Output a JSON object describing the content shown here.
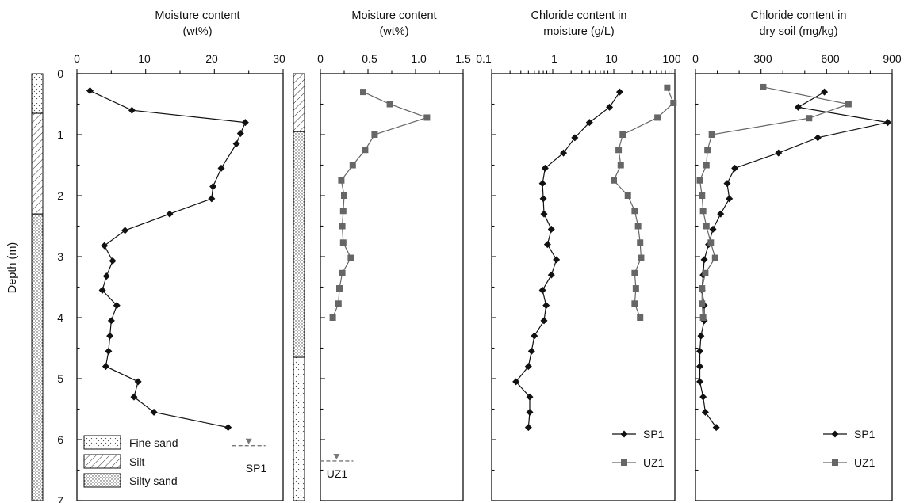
{
  "colors": {
    "sp1": "#111111",
    "uz1": "#666666",
    "axis": "#111111"
  },
  "y_axis": {
    "label": "Depth (m)",
    "range": [
      0,
      7
    ],
    "ticks": [
      "0",
      "1",
      "2",
      "3",
      "4",
      "5",
      "6",
      "7"
    ]
  },
  "lithology_legend": [
    {
      "pattern": "dots-fine",
      "label": "Fine sand"
    },
    {
      "pattern": "hatch",
      "label": "Silt"
    },
    {
      "pattern": "dots-dense",
      "label": "Silty sand"
    }
  ],
  "lithology_columns": [
    {
      "site": "SP1",
      "layers": [
        {
          "pattern": "dots-fine",
          "top": 0,
          "bottom": 0.65
        },
        {
          "pattern": "hatch",
          "top": 0.65,
          "bottom": 2.3
        },
        {
          "pattern": "dots-dense",
          "top": 2.3,
          "bottom": 7
        }
      ]
    },
    {
      "site": "UZ1",
      "layers": [
        {
          "pattern": "hatch",
          "top": 0,
          "bottom": 0.95
        },
        {
          "pattern": "dots-dense",
          "top": 0.95,
          "bottom": 4.65
        },
        {
          "pattern": "dots-fine",
          "top": 4.65,
          "bottom": 7
        }
      ]
    }
  ],
  "water_tables": [
    {
      "label": "SP1",
      "panel": 0,
      "x": 25,
      "depth": 6.1
    },
    {
      "label": "UZ1",
      "panel": 1,
      "x": 0.17,
      "depth": 6.35
    }
  ],
  "chart_data": [
    {
      "type": "line",
      "title_lines": [
        "Moisture content",
        "(wt%)"
      ],
      "xlim": [
        0,
        30
      ],
      "x_ticks": [
        "0",
        "10",
        "20",
        "30"
      ],
      "x_minor": [
        5,
        15,
        25
      ],
      "scale": "linear",
      "series": [
        {
          "name": "SP1",
          "marker": "diamond",
          "points": [
            [
              1.9,
              0.28
            ],
            [
              8.0,
              0.6
            ],
            [
              24.5,
              0.8
            ],
            [
              23.8,
              0.98
            ],
            [
              23.2,
              1.15
            ],
            [
              21.0,
              1.55
            ],
            [
              19.8,
              1.85
            ],
            [
              19.6,
              2.05
            ],
            [
              13.5,
              2.3
            ],
            [
              7.0,
              2.57
            ],
            [
              4.0,
              2.82
            ],
            [
              5.2,
              3.07
            ],
            [
              4.3,
              3.32
            ],
            [
              3.7,
              3.55
            ],
            [
              5.8,
              3.8
            ],
            [
              5.0,
              4.05
            ],
            [
              4.8,
              4.3
            ],
            [
              4.6,
              4.55
            ],
            [
              4.2,
              4.8
            ],
            [
              8.9,
              5.05
            ],
            [
              8.3,
              5.3
            ],
            [
              11.2,
              5.55
            ],
            [
              22.0,
              5.8
            ]
          ]
        }
      ]
    },
    {
      "type": "line",
      "title_lines": [
        "Moisture content",
        "(wt%)"
      ],
      "xlim": [
        0,
        1.5
      ],
      "x_ticks": [
        "0",
        "0.5",
        "1.0",
        "1.5"
      ],
      "x_minor": [
        0.25,
        0.75,
        1.25
      ],
      "scale": "linear",
      "series": [
        {
          "name": "UZ1",
          "marker": "square",
          "points": [
            [
              0.45,
              0.3
            ],
            [
              0.73,
              0.5
            ],
            [
              1.12,
              0.72
            ],
            [
              0.57,
              1.0
            ],
            [
              0.47,
              1.25
            ],
            [
              0.34,
              1.5
            ],
            [
              0.22,
              1.75
            ],
            [
              0.25,
              2.0
            ],
            [
              0.24,
              2.25
            ],
            [
              0.23,
              2.5
            ],
            [
              0.24,
              2.77
            ],
            [
              0.32,
              3.02
            ],
            [
              0.23,
              3.27
            ],
            [
              0.2,
              3.52
            ],
            [
              0.19,
              3.77
            ],
            [
              0.13,
              4.0
            ]
          ]
        }
      ]
    },
    {
      "type": "line",
      "title_lines": [
        "Chloride content in",
        "moisture (g/L)"
      ],
      "xlim": [
        0.1,
        100
      ],
      "x_ticks": [
        "0.1",
        "1",
        "10",
        "100"
      ],
      "scale": "log",
      "legend": {
        "position": "lower-right",
        "entries": [
          "SP1",
          "UZ1"
        ]
      },
      "series": [
        {
          "name": "SP1",
          "marker": "diamond",
          "points": [
            [
              12.5,
              0.3
            ],
            [
              8.5,
              0.55
            ],
            [
              4.0,
              0.8
            ],
            [
              2.3,
              1.05
            ],
            [
              1.5,
              1.3
            ],
            [
              0.75,
              1.55
            ],
            [
              0.68,
              1.8
            ],
            [
              0.7,
              2.05
            ],
            [
              0.72,
              2.3
            ],
            [
              0.95,
              2.55
            ],
            [
              0.82,
              2.8
            ],
            [
              1.15,
              3.05
            ],
            [
              0.95,
              3.3
            ],
            [
              0.68,
              3.55
            ],
            [
              0.78,
              3.8
            ],
            [
              0.72,
              4.05
            ],
            [
              0.5,
              4.3
            ],
            [
              0.45,
              4.55
            ],
            [
              0.4,
              4.8
            ],
            [
              0.25,
              5.05
            ],
            [
              0.42,
              5.3
            ],
            [
              0.42,
              5.55
            ],
            [
              0.4,
              5.8
            ]
          ]
        },
        {
          "name": "UZ1",
          "marker": "square",
          "points": [
            [
              75,
              0.23
            ],
            [
              95,
              0.48
            ],
            [
              52,
              0.72
            ],
            [
              14,
              1.0
            ],
            [
              12,
              1.25
            ],
            [
              13,
              1.5
            ],
            [
              10,
              1.75
            ],
            [
              17,
              2.0
            ],
            [
              22,
              2.25
            ],
            [
              25,
              2.5
            ],
            [
              27,
              2.77
            ],
            [
              28,
              3.02
            ],
            [
              22,
              3.27
            ],
            [
              23,
              3.52
            ],
            [
              22,
              3.77
            ],
            [
              27,
              4.0
            ]
          ]
        }
      ]
    },
    {
      "type": "line",
      "title_lines": [
        "Chloride content in",
        "dry soil (mg/kg)"
      ],
      "xlim": [
        0,
        900
      ],
      "x_ticks": [
        "0",
        "300",
        "600",
        "900"
      ],
      "x_minor": [
        100,
        200,
        400,
        500,
        700,
        800
      ],
      "scale": "linear",
      "legend": {
        "position": "lower-right",
        "entries": [
          "SP1",
          "UZ1"
        ]
      },
      "series": [
        {
          "name": "SP1",
          "marker": "diamond",
          "points": [
            [
              590,
              0.3
            ],
            [
              470,
              0.55
            ],
            [
              880,
              0.8
            ],
            [
              560,
              1.05
            ],
            [
              380,
              1.3
            ],
            [
              180,
              1.55
            ],
            [
              145,
              1.8
            ],
            [
              155,
              2.05
            ],
            [
              115,
              2.3
            ],
            [
              80,
              2.55
            ],
            [
              60,
              2.8
            ],
            [
              40,
              3.05
            ],
            [
              35,
              3.3
            ],
            [
              30,
              3.55
            ],
            [
              40,
              3.8
            ],
            [
              40,
              4.05
            ],
            [
              25,
              4.3
            ],
            [
              20,
              4.55
            ],
            [
              20,
              4.8
            ],
            [
              20,
              5.05
            ],
            [
              35,
              5.3
            ],
            [
              45,
              5.55
            ],
            [
              95,
              5.8
            ]
          ]
        },
        {
          "name": "UZ1",
          "marker": "square",
          "points": [
            [
              310,
              0.22
            ],
            [
              700,
              0.5
            ],
            [
              520,
              0.73
            ],
            [
              75,
              1.0
            ],
            [
              55,
              1.25
            ],
            [
              50,
              1.5
            ],
            [
              20,
              1.75
            ],
            [
              30,
              2.0
            ],
            [
              35,
              2.25
            ],
            [
              50,
              2.5
            ],
            [
              70,
              2.77
            ],
            [
              90,
              3.02
            ],
            [
              45,
              3.27
            ],
            [
              30,
              3.52
            ],
            [
              30,
              3.77
            ],
            [
              35,
              4.0
            ]
          ]
        }
      ]
    }
  ]
}
